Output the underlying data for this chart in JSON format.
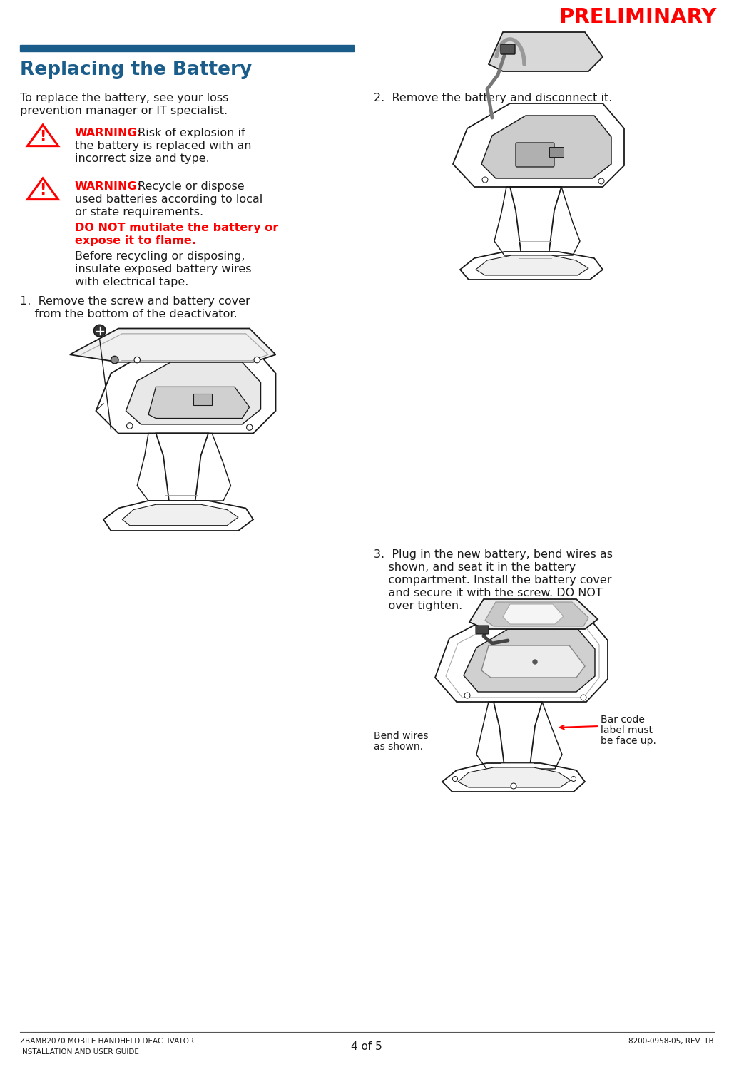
{
  "bg_color": "#ffffff",
  "preliminary_text": "PRELIMINARY",
  "preliminary_color": "#ff0000",
  "title_text": "Replacing the Battery",
  "title_color": "#1a5c8a",
  "title_bar_color": "#1a5c8a",
  "warning_color": "#ff0000",
  "body_color": "#1a1a1a",
  "footer_left1": "ZBAMB2070 MOBILE HANDHELD DEACTIVATOR",
  "footer_left2": "INSTALLATION AND USER GUIDE",
  "footer_center": "4 of 5",
  "footer_right": "8200-0958-05, REV. 1B",
  "intro_line1": "To replace the battery, see your loss",
  "intro_line2": "prevention manager or IT specialist.",
  "w1_line1": "Risk of explosion if",
  "w1_line2": "the battery is replaced with an",
  "w1_line3": "incorrect size and type.",
  "w2_line1": "Recycle or dispose",
  "w2_line2": "used batteries according to local",
  "w2_line3": "or state requirements.",
  "donot_line1": "DO NOT mutilate the battery or",
  "donot_line2": "expose it to flame.",
  "before_line1": "Before recycling or disposing,",
  "before_line2": "insulate exposed battery wires",
  "before_line3": "with electrical tape.",
  "step1_line1": "1.  Remove the screw and battery cover",
  "step1_line2": "    from the bottom of the deactivator.",
  "step2_text": "2.  Remove the battery and disconnect it.",
  "step3_line1": "3.  Plug in the new battery, bend wires as",
  "step3_line2": "    shown, and seat it in the battery",
  "step3_line3": "    compartment. Install the battery cover",
  "step3_line4": "    and secure it with the screw. DO NOT",
  "step3_line5": "    over tighten.",
  "bend_wires_line1": "Bend wires",
  "bend_wires_line2": "as shown.",
  "barcode_line1": "Bar code",
  "barcode_line2": "label must",
  "barcode_line3": "be face up."
}
